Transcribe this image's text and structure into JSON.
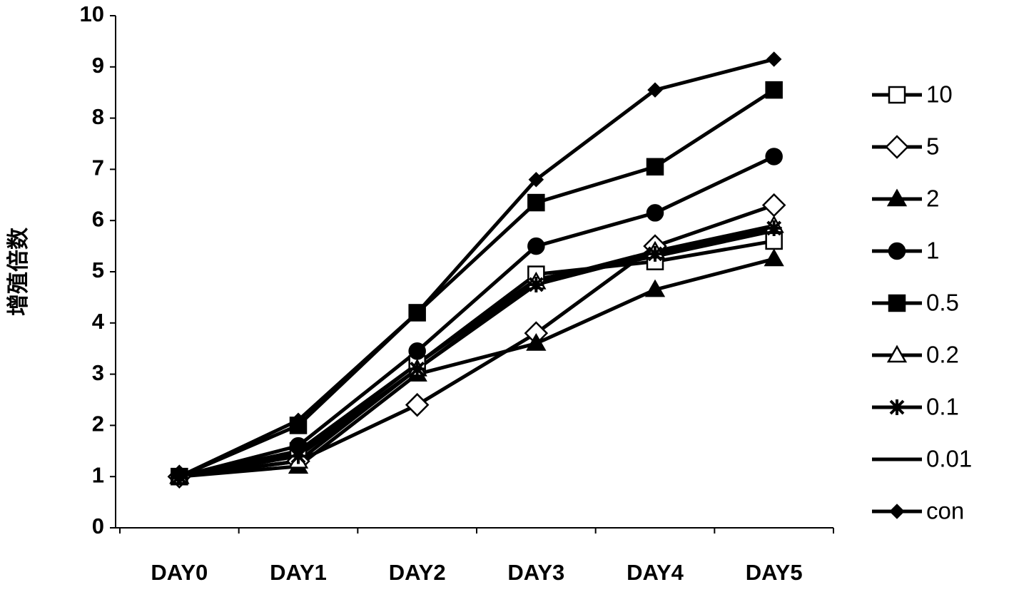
{
  "chart_data": {
    "type": "line",
    "y_label": "增殖倍数",
    "categories": [
      "DAY0",
      "DAY1",
      "DAY2",
      "DAY3",
      "DAY4",
      "DAY5"
    ],
    "ylim": [
      0,
      10
    ],
    "yticks": [
      0,
      1,
      2,
      3,
      4,
      5,
      6,
      7,
      8,
      9,
      10
    ],
    "grid": false,
    "legend": "right",
    "series": [
      {
        "name": "10",
        "color": "#000000",
        "marker": "square-open",
        "values": [
          1,
          1.5,
          3.2,
          4.95,
          5.2,
          5.6
        ]
      },
      {
        "name": "5",
        "color": "#000000",
        "marker": "diamond-open",
        "values": [
          1,
          1.3,
          2.4,
          3.8,
          5.5,
          6.3
        ]
      },
      {
        "name": "2",
        "color": "#000000",
        "marker": "triangle",
        "values": [
          1,
          1.2,
          3.0,
          3.6,
          4.65,
          5.25
        ]
      },
      {
        "name": "1",
        "color": "#000000",
        "marker": "circle",
        "values": [
          1,
          1.6,
          3.45,
          5.5,
          6.15,
          7.25
        ]
      },
      {
        "name": "0.5",
        "color": "#000000",
        "marker": "square",
        "values": [
          1,
          2.0,
          4.2,
          6.35,
          7.05,
          8.55
        ]
      },
      {
        "name": "0.2",
        "color": "#000000",
        "marker": "triangle-open",
        "values": [
          1,
          1.3,
          3.1,
          4.8,
          5.4,
          5.9
        ]
      },
      {
        "name": "0.1",
        "color": "#000000",
        "marker": "star",
        "values": [
          1,
          1.4,
          3.1,
          4.75,
          5.35,
          5.85
        ]
      },
      {
        "name": "0.01",
        "color": "#000000",
        "marker": "none",
        "values": [
          1,
          1.45,
          3.2,
          4.85,
          5.3,
          5.8
        ]
      },
      {
        "name": "con",
        "color": "#000000",
        "marker": "diamond-small",
        "values": [
          1,
          2.1,
          4.2,
          6.8,
          8.55,
          9.15
        ]
      }
    ]
  }
}
